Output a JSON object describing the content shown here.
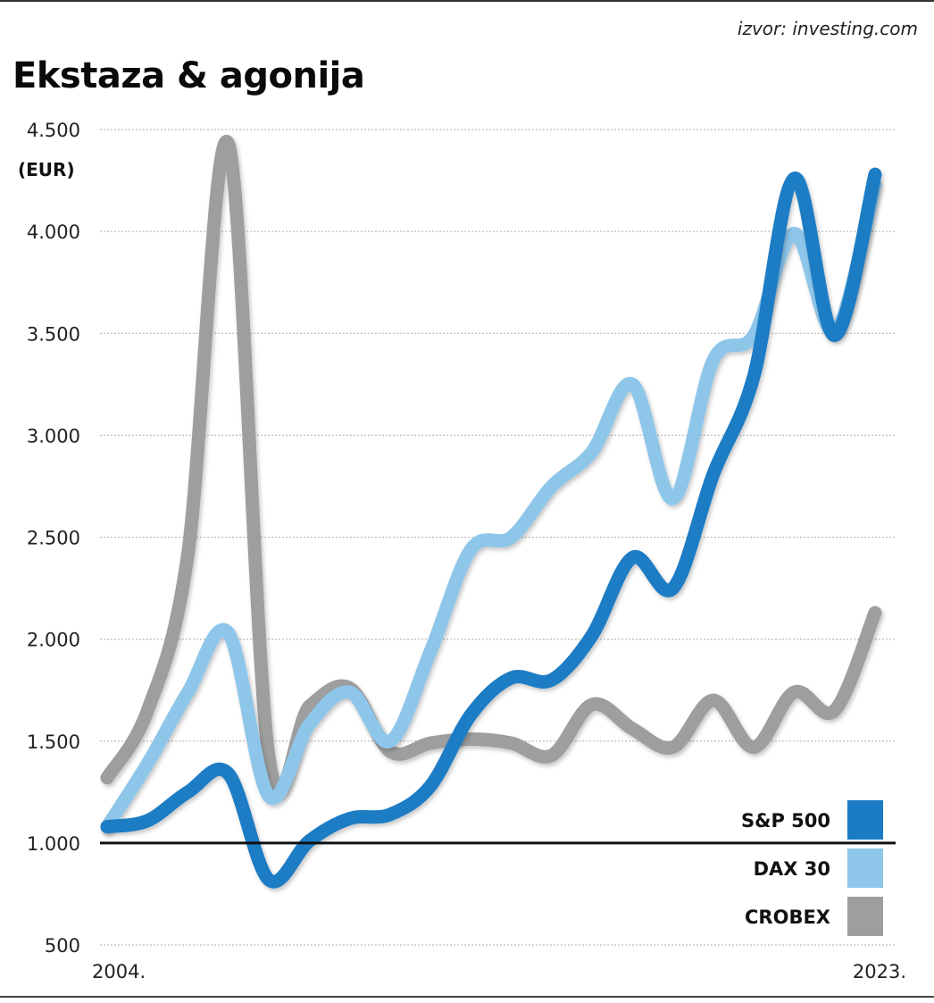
{
  "source": "izvor: investing.com",
  "title": "Ekstaza & agonija",
  "chart_data": {
    "type": "line",
    "title": "Ekstaza & agonija",
    "subtitle": "",
    "source": "izvor: investing.com",
    "xlabel": "",
    "ylabel": "(EUR)",
    "ylim": [
      500,
      4500
    ],
    "xlim": [
      2004,
      2023
    ],
    "yticks": [
      500,
      1000,
      1500,
      2000,
      2500,
      3000,
      3500,
      4000,
      4500
    ],
    "ytick_labels": [
      "500",
      "1.000",
      "1.500",
      "2.000",
      "2.500",
      "3.000",
      "3.500",
      "4.000",
      "4.500"
    ],
    "xtick_labels": [
      {
        "x": 2004,
        "label": "2004."
      },
      {
        "x": 2023,
        "label": "2023."
      }
    ],
    "baseline": 1000,
    "grid": "horizontal-dotted",
    "legend_placement": "bottom-right",
    "x": [
      2004,
      2005,
      2006,
      2007,
      2008,
      2009,
      2010,
      2011,
      2012,
      2013,
      2014,
      2015,
      2016,
      2017,
      2018,
      2019,
      2020,
      2021,
      2022,
      2023
    ],
    "series": [
      {
        "name": "CROBEX",
        "color": "#9e9e9e",
        "values": [
          1320,
          1650,
          2420,
          4430,
          1420,
          1670,
          1760,
          1450,
          1490,
          1510,
          1490,
          1430,
          1680,
          1560,
          1470,
          1700,
          1470,
          1740,
          1650,
          2130
        ]
      },
      {
        "name": "DAX 30",
        "color": "#8ec6ea",
        "values": [
          1080,
          1390,
          1740,
          2030,
          1230,
          1580,
          1740,
          1500,
          1940,
          2440,
          2500,
          2750,
          2920,
          3250,
          2690,
          3370,
          3490,
          3990,
          3510,
          4230
        ]
      },
      {
        "name": "S&P 500",
        "color": "#1b7bc4",
        "values": [
          1080,
          1110,
          1250,
          1340,
          820,
          1010,
          1120,
          1140,
          1280,
          1630,
          1810,
          1800,
          2020,
          2400,
          2250,
          2810,
          3290,
          4260,
          3490,
          4280
        ]
      }
    ],
    "legend": [
      {
        "label": "S&P 500",
        "color": "#1b7bc4"
      },
      {
        "label": "DAX 30",
        "color": "#8ec6ea"
      },
      {
        "label": "CROBEX",
        "color": "#9e9e9e"
      }
    ]
  }
}
